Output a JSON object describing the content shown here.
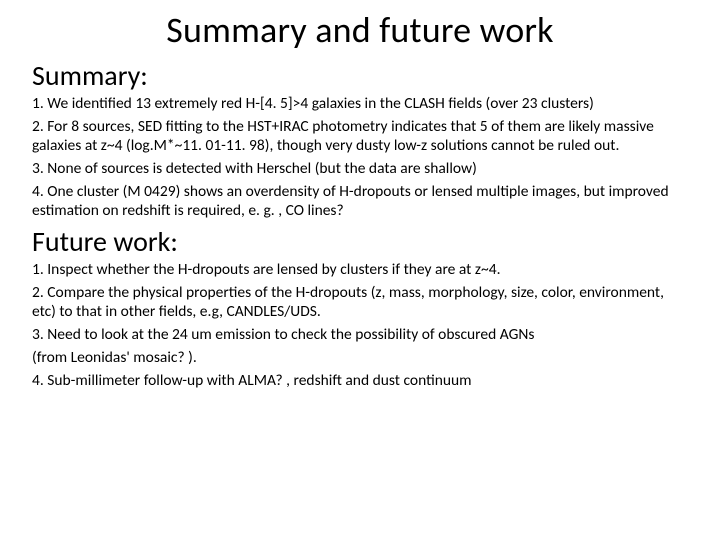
{
  "title": "Summary and future work",
  "summary": {
    "heading": "Summary:",
    "items": [
      "1. We identified 13 extremely red H-[4. 5]>4 galaxies in the CLASH fields (over 23 clusters)",
      "2. For 8 sources, SED fitting to the HST+IRAC photometry indicates that 5 of them are likely massive galaxies at z~4 (log.M*~11. 01-11. 98), though very dusty low-z solutions cannot be ruled out.",
      "3. None of sources is detected with Herschel (but the data are shallow)",
      "4. One cluster (M 0429) shows an overdensity of H-dropouts or lensed multiple images, but improved estimation on redshift is required, e. g. , CO lines?"
    ]
  },
  "future_work": {
    "heading": "Future work:",
    "items": [
      "1. Inspect whether the H-dropouts are lensed by clusters if they are at z~4.",
      "2. Compare the physical properties of the H-dropouts (z, mass, morphology, size, color, environment, etc) to that in other fields, e.g, CANDLES/UDS.",
      "3. Need to look at the 24 um emission to  check the possibility of obscured AGNs",
      "(from Leonidas' mosaic? ).",
      "4. Sub-millimeter follow-up with ALMA? , redshift and dust continuum"
    ]
  },
  "colors": {
    "background": "#ffffff",
    "text": "#000000"
  },
  "typography": {
    "title_fontsize": 36,
    "heading_fontsize": 28,
    "body_fontsize": 15.5,
    "font_family": "Calibri, Arial, sans-serif"
  }
}
